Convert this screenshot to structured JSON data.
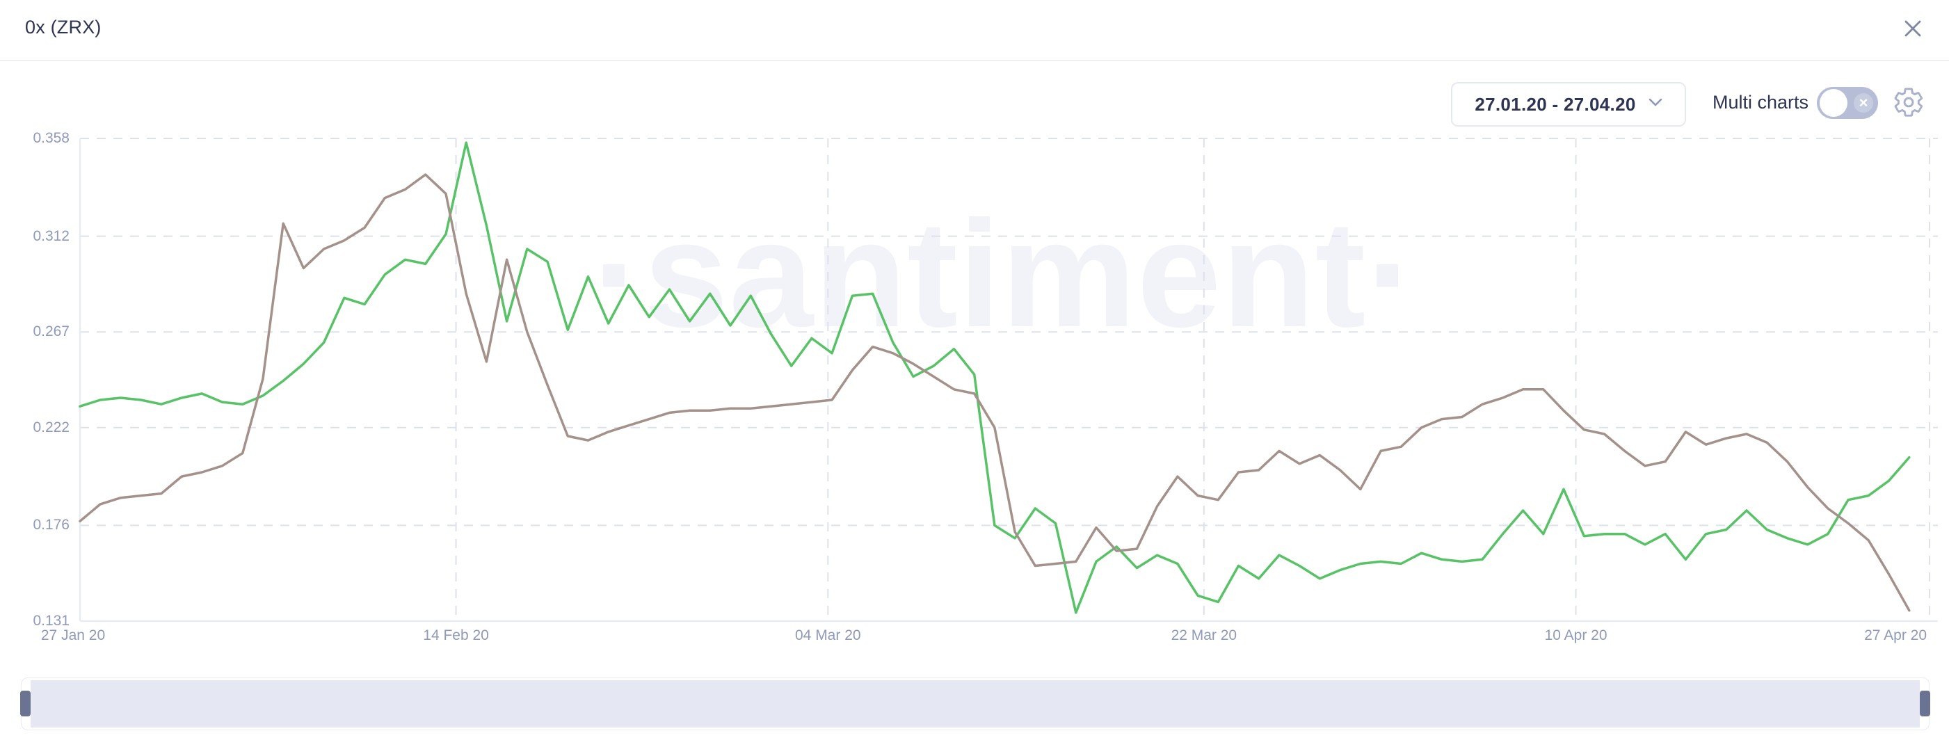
{
  "header": {
    "title": "0x (ZRX)"
  },
  "toolbar": {
    "date_range": "27.01.20 - 27.04.20",
    "multi_charts_label": "Multi charts",
    "toggle_state": "off",
    "toggle_x": "×"
  },
  "watermark": "·santiment·",
  "colors": {
    "green_line": "#57c266",
    "brown_line": "#a3918a",
    "axis_text": "#8f99ba",
    "grid": "#dde1ee",
    "minimap_bg": "#e5e8f3",
    "minimap_handle": "#6a7492",
    "toggle_track": "#b6bdd7"
  },
  "chart_data": {
    "type": "line",
    "title": "0x (ZRX)",
    "xlabel": "",
    "ylabel": "",
    "grid": "dashed",
    "legend": "none",
    "ylim": [
      0.131,
      0.358
    ],
    "y_ticks": [
      {
        "label": "0.358",
        "value": 0.358
      },
      {
        "label": "0.312",
        "value": 0.312
      },
      {
        "label": "0.267",
        "value": 0.267
      },
      {
        "label": "0.222",
        "value": 0.222
      },
      {
        "label": "0.176",
        "value": 0.176
      },
      {
        "label": "0.131",
        "value": 0.131
      }
    ],
    "x_ticks": [
      {
        "label": "27 Jan 20",
        "day": 0
      },
      {
        "label": "14 Feb 20",
        "day": 18.5
      },
      {
        "label": "04 Mar 20",
        "day": 36.8
      },
      {
        "label": "22 Mar 20",
        "day": 55.3
      },
      {
        "label": "10 Apr 20",
        "day": 73.6
      },
      {
        "label": "27 Apr 20",
        "day": 91
      }
    ],
    "days_span": 91,
    "series": [
      {
        "name": "green_line",
        "color": "#57c266",
        "values": [
          0.232,
          0.235,
          0.236,
          0.235,
          0.233,
          0.236,
          0.238,
          0.234,
          0.233,
          0.237,
          0.244,
          0.252,
          0.262,
          0.283,
          0.28,
          0.294,
          0.301,
          0.299,
          0.313,
          0.356,
          0.317,
          0.272,
          0.306,
          0.3,
          0.268,
          0.293,
          0.271,
          0.289,
          0.274,
          0.287,
          0.272,
          0.285,
          0.27,
          0.284,
          0.266,
          0.251,
          0.264,
          0.257,
          0.284,
          0.285,
          0.262,
          0.246,
          0.251,
          0.259,
          0.247,
          0.176,
          0.17,
          0.184,
          0.177,
          0.135,
          0.159,
          0.166,
          0.156,
          0.162,
          0.158,
          0.143,
          0.14,
          0.157,
          0.151,
          0.162,
          0.157,
          0.151,
          0.155,
          0.158,
          0.159,
          0.158,
          0.163,
          0.16,
          0.159,
          0.16,
          0.172,
          0.183,
          0.172,
          0.193,
          0.171,
          0.172,
          0.172,
          0.167,
          0.172,
          0.16,
          0.172,
          0.174,
          0.183,
          0.174,
          0.17,
          0.167,
          0.172,
          0.188,
          0.19,
          0.197,
          0.208
        ]
      },
      {
        "name": "brown_line",
        "color": "#a3918a",
        "values": [
          0.178,
          0.186,
          0.189,
          0.19,
          0.191,
          0.199,
          0.201,
          0.204,
          0.21,
          0.245,
          0.318,
          0.297,
          0.306,
          0.31,
          0.316,
          0.33,
          0.334,
          0.341,
          0.332,
          0.285,
          0.253,
          0.301,
          0.267,
          0.242,
          0.218,
          0.216,
          0.22,
          0.223,
          0.226,
          0.229,
          0.23,
          0.23,
          0.231,
          0.231,
          0.232,
          0.233,
          0.234,
          0.235,
          0.249,
          0.26,
          0.257,
          0.252,
          0.246,
          0.24,
          0.238,
          0.222,
          0.173,
          0.157,
          0.158,
          0.159,
          0.175,
          0.164,
          0.165,
          0.185,
          0.199,
          0.19,
          0.188,
          0.201,
          0.202,
          0.211,
          0.205,
          0.209,
          0.202,
          0.193,
          0.211,
          0.213,
          0.222,
          0.226,
          0.227,
          0.233,
          0.236,
          0.24,
          0.24,
          0.23,
          0.221,
          0.219,
          0.211,
          0.204,
          0.206,
          0.22,
          0.214,
          0.217,
          0.219,
          0.215,
          0.206,
          0.194,
          0.184,
          0.177,
          0.169,
          0.153,
          0.136
        ]
      }
    ]
  }
}
